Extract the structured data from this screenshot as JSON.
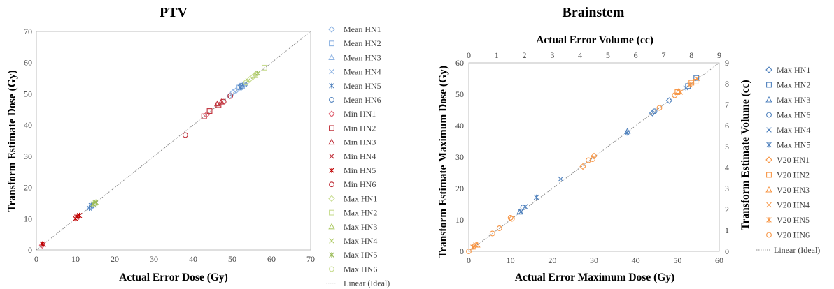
{
  "chart_data": [
    {
      "type": "scatter",
      "title": "PTV",
      "xlabel": "Actual Error Dose (Gy)",
      "ylabel": "Transform Estimate Dose (Gy)",
      "xlim": [
        0,
        70
      ],
      "ylim": [
        0,
        70
      ],
      "xticks": [
        "0",
        "10",
        "20",
        "30",
        "40",
        "50",
        "60",
        "70"
      ],
      "yticks": [
        "0",
        "10",
        "20",
        "30",
        "40",
        "50",
        "60",
        "70"
      ],
      "legend_position": "right",
      "series": [
        {
          "name": "Mean HN1",
          "marker": "diamond",
          "color": "#8fb4e3",
          "points": [
            [
              49.3,
              49.3
            ],
            [
              50.2,
              50.5
            ],
            [
              51.0,
              51.1
            ]
          ]
        },
        {
          "name": "Mean HN2",
          "marker": "square",
          "color": "#8fb4e3",
          "points": [
            [
              51.8,
              52.0
            ],
            [
              52.5,
              52.6
            ]
          ]
        },
        {
          "name": "Mean HN3",
          "marker": "triangle",
          "color": "#8fb4e3",
          "points": [
            [
              13.8,
              13.9
            ],
            [
              14.5,
              14.4
            ]
          ]
        },
        {
          "name": "Mean HN4",
          "marker": "x",
          "color": "#8fb4e3",
          "points": [
            [
              52.6,
              52.3
            ],
            [
              53.0,
              53.1
            ]
          ]
        },
        {
          "name": "Mean HN5",
          "marker": "star",
          "color": "#4f81bd",
          "points": [
            [
              13.5,
              13.4
            ],
            [
              14.0,
              14.2
            ],
            [
              52.0,
              52.1
            ]
          ]
        },
        {
          "name": "Mean HN6",
          "marker": "circle",
          "color": "#4f81bd",
          "points": [
            [
              52.3,
              52.5
            ],
            [
              53.2,
              53.0
            ]
          ]
        },
        {
          "name": "Min HN1",
          "marker": "diamond",
          "color": "#e06070",
          "points": [
            [
              1.5,
              1.5
            ],
            [
              43.4,
              43.3
            ]
          ]
        },
        {
          "name": "Min HN2",
          "marker": "square",
          "color": "#c0303a",
          "points": [
            [
              42.8,
              42.8
            ],
            [
              44.2,
              44.5
            ],
            [
              46.5,
              46.4
            ]
          ]
        },
        {
          "name": "Min HN3",
          "marker": "triangle",
          "color": "#c0303a",
          "points": [
            [
              46.2,
              46.8
            ],
            [
              47.2,
              47.4
            ]
          ]
        },
        {
          "name": "Min HN4",
          "marker": "x",
          "color": "#c0303a",
          "points": [
            [
              10.3,
              10.5
            ],
            [
              1.8,
              1.8
            ]
          ]
        },
        {
          "name": "Min HN5",
          "marker": "star",
          "color": "#c00000",
          "points": [
            [
              10.0,
              10.0
            ],
            [
              10.5,
              10.8
            ],
            [
              11.0,
              11.0
            ],
            [
              1.5,
              1.9
            ]
          ]
        },
        {
          "name": "Min HN6",
          "marker": "circle",
          "color": "#c0303a",
          "points": [
            [
              38.0,
              36.8
            ],
            [
              47.8,
              47.5
            ],
            [
              49.5,
              49.3
            ]
          ]
        },
        {
          "name": "Max HN1",
          "marker": "diamond",
          "color": "#c8dc90",
          "points": [
            [
              54.5,
              54.7
            ],
            [
              55.3,
              55.5
            ]
          ]
        },
        {
          "name": "Max HN2",
          "marker": "square",
          "color": "#c8dc90",
          "points": [
            [
              58.2,
              58.4
            ]
          ]
        },
        {
          "name": "Max HN3",
          "marker": "triangle",
          "color": "#b0cc6a",
          "points": [
            [
              14.8,
              15.0
            ],
            [
              55.8,
              55.9
            ]
          ]
        },
        {
          "name": "Max HN4",
          "marker": "x",
          "color": "#b0cc6a",
          "points": [
            [
              15.0,
              15.2
            ],
            [
              54.0,
              54.2
            ]
          ]
        },
        {
          "name": "Max HN5",
          "marker": "star",
          "color": "#9bbb59",
          "points": [
            [
              14.5,
              14.7
            ],
            [
              15.2,
              15.3
            ],
            [
              56.5,
              56.6
            ]
          ]
        },
        {
          "name": "Max HN6",
          "marker": "circle",
          "color": "#c8dc90",
          "points": [
            [
              56.0,
              56.2
            ],
            [
              53.5,
              53.6
            ]
          ]
        }
      ],
      "ideal_line": {
        "name": "Linear (Ideal)",
        "from": [
          0,
          0
        ],
        "to": [
          70,
          70
        ]
      }
    },
    {
      "type": "scatter",
      "title": "Brainstem",
      "xlabel": "Actual Error Maximum Dose (Gy)",
      "ylabel": "Transform Estimate Maximum Dose (Gy)",
      "x2label": "Actual Error Volume (cc)",
      "y2label": "Transform Estimate Volume (cc)",
      "xlim": [
        0,
        60
      ],
      "ylim": [
        0,
        60
      ],
      "x2lim": [
        0,
        9
      ],
      "y2lim": [
        0,
        9
      ],
      "xticks": [
        "0",
        "10",
        "20",
        "30",
        "40",
        "50",
        "60"
      ],
      "yticks": [
        "0",
        "10",
        "20",
        "30",
        "40",
        "50",
        "60"
      ],
      "x2ticks": [
        "0",
        "1",
        "2",
        "3",
        "4",
        "5",
        "6",
        "7",
        "8",
        "9"
      ],
      "y2ticks": [
        "0",
        "1",
        "2",
        "3",
        "4",
        "5",
        "6",
        "7",
        "8",
        "9"
      ],
      "legend_position": "right",
      "series": [
        {
          "name": "Max HN1",
          "marker": "diamond",
          "color": "#4f81bd",
          "axis": "primary",
          "points": [
            [
              44.0,
              44.0
            ],
            [
              48.0,
              48.0
            ]
          ]
        },
        {
          "name": "Max HN2",
          "marker": "square",
          "color": "#4f81bd",
          "axis": "primary",
          "points": [
            [
              54.5,
              55.2
            ],
            [
              52.5,
              52.6
            ]
          ]
        },
        {
          "name": "Max HN3",
          "marker": "triangle",
          "color": "#4f81bd",
          "axis": "primary",
          "points": [
            [
              38.0,
              38.2
            ],
            [
              12.2,
              12.5
            ]
          ]
        },
        {
          "name": "Max HN6",
          "marker": "circle",
          "color": "#4f81bd",
          "axis": "primary",
          "points": [
            [
              44.5,
              44.6
            ],
            [
              13.0,
              14.0
            ]
          ]
        },
        {
          "name": "Max HN4",
          "marker": "x",
          "color": "#4f81bd",
          "axis": "primary",
          "points": [
            [
              12.5,
              12.6
            ],
            [
              13.5,
              14.2
            ],
            [
              22.0,
              23.0
            ]
          ]
        },
        {
          "name": "Max HN5",
          "marker": "star",
          "color": "#4f81bd",
          "axis": "primary",
          "points": [
            [
              16.2,
              17.2
            ],
            [
              37.9,
              37.7
            ],
            [
              52.0,
              52.0
            ]
          ]
        },
        {
          "name": "V20 HN1",
          "marker": "diamond",
          "color": "#f79646",
          "axis": "secondary",
          "points": [
            [
              0.2,
              0.25
            ],
            [
              4.1,
              4.05
            ],
            [
              4.5,
              4.55
            ]
          ]
        },
        {
          "name": "V20 HN2",
          "marker": "square",
          "color": "#f79646",
          "axis": "secondary",
          "points": [
            [
              7.5,
              7.6
            ],
            [
              8.0,
              8.05
            ],
            [
              8.15,
              8.1
            ]
          ]
        },
        {
          "name": "V20 HN3",
          "marker": "triangle",
          "color": "#f79646",
          "axis": "secondary",
          "points": [
            [
              0.3,
              0.3
            ],
            [
              7.55,
              7.65
            ]
          ]
        },
        {
          "name": "V20 HN4",
          "marker": "x",
          "color": "#f79646",
          "axis": "secondary",
          "points": [
            [
              8.2,
              8.25
            ],
            [
              7.6,
              7.6
            ]
          ]
        },
        {
          "name": "V20 HN5",
          "marker": "star",
          "color": "#f79646",
          "axis": "secondary",
          "points": [
            [
              0.15,
              0.2
            ],
            [
              0.25,
              0.3
            ],
            [
              7.95,
              7.95
            ]
          ]
        },
        {
          "name": "V20 HN6",
          "marker": "circle",
          "color": "#f79646",
          "axis": "secondary",
          "points": [
            [
              0.0,
              0.0
            ],
            [
              0.85,
              0.85
            ],
            [
              1.1,
              1.1
            ],
            [
              1.5,
              1.6
            ],
            [
              1.55,
              1.55
            ],
            [
              4.3,
              4.35
            ],
            [
              4.45,
              4.4
            ],
            [
              6.85,
              6.85
            ],
            [
              7.4,
              7.45
            ]
          ]
        }
      ],
      "ideal_line": {
        "name": "Linear (Ideal)",
        "from": [
          0,
          0
        ],
        "to": [
          60,
          60
        ]
      }
    }
  ]
}
